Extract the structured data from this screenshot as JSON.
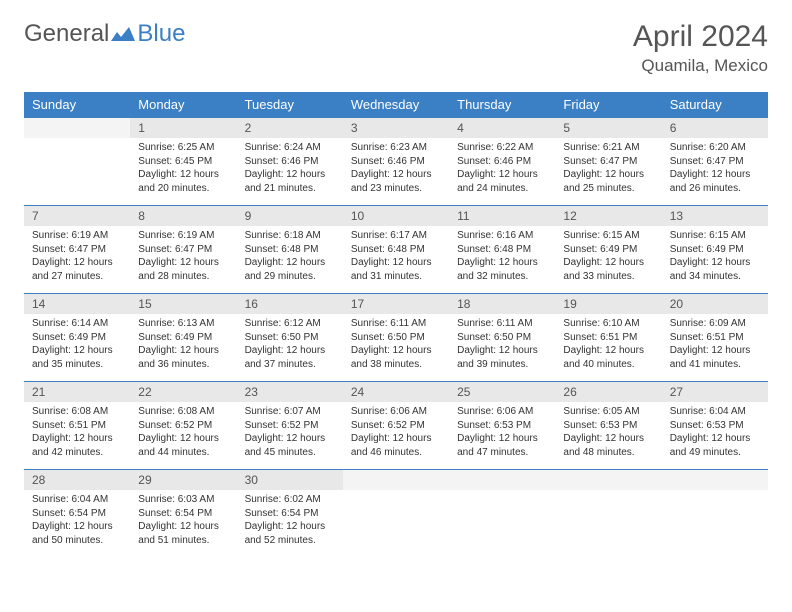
{
  "logo": {
    "text1": "General",
    "text2": "Blue"
  },
  "title": "April 2024",
  "location": "Quamila, Mexico",
  "colors": {
    "header_bg": "#3b7fc4",
    "header_text": "#ffffff",
    "daynum_bg": "#e8e8e8",
    "empty_bg": "#f4f4f4",
    "border": "#3b7fc4",
    "body_text": "#333333",
    "title_text": "#555555"
  },
  "weekdays": [
    "Sunday",
    "Monday",
    "Tuesday",
    "Wednesday",
    "Thursday",
    "Friday",
    "Saturday"
  ],
  "weeks": [
    [
      null,
      {
        "n": "1",
        "sunrise": "6:25 AM",
        "sunset": "6:45 PM",
        "daylight": "12 hours and 20 minutes."
      },
      {
        "n": "2",
        "sunrise": "6:24 AM",
        "sunset": "6:46 PM",
        "daylight": "12 hours and 21 minutes."
      },
      {
        "n": "3",
        "sunrise": "6:23 AM",
        "sunset": "6:46 PM",
        "daylight": "12 hours and 23 minutes."
      },
      {
        "n": "4",
        "sunrise": "6:22 AM",
        "sunset": "6:46 PM",
        "daylight": "12 hours and 24 minutes."
      },
      {
        "n": "5",
        "sunrise": "6:21 AM",
        "sunset": "6:47 PM",
        "daylight": "12 hours and 25 minutes."
      },
      {
        "n": "6",
        "sunrise": "6:20 AM",
        "sunset": "6:47 PM",
        "daylight": "12 hours and 26 minutes."
      }
    ],
    [
      {
        "n": "7",
        "sunrise": "6:19 AM",
        "sunset": "6:47 PM",
        "daylight": "12 hours and 27 minutes."
      },
      {
        "n": "8",
        "sunrise": "6:19 AM",
        "sunset": "6:47 PM",
        "daylight": "12 hours and 28 minutes."
      },
      {
        "n": "9",
        "sunrise": "6:18 AM",
        "sunset": "6:48 PM",
        "daylight": "12 hours and 29 minutes."
      },
      {
        "n": "10",
        "sunrise": "6:17 AM",
        "sunset": "6:48 PM",
        "daylight": "12 hours and 31 minutes."
      },
      {
        "n": "11",
        "sunrise": "6:16 AM",
        "sunset": "6:48 PM",
        "daylight": "12 hours and 32 minutes."
      },
      {
        "n": "12",
        "sunrise": "6:15 AM",
        "sunset": "6:49 PM",
        "daylight": "12 hours and 33 minutes."
      },
      {
        "n": "13",
        "sunrise": "6:15 AM",
        "sunset": "6:49 PM",
        "daylight": "12 hours and 34 minutes."
      }
    ],
    [
      {
        "n": "14",
        "sunrise": "6:14 AM",
        "sunset": "6:49 PM",
        "daylight": "12 hours and 35 minutes."
      },
      {
        "n": "15",
        "sunrise": "6:13 AM",
        "sunset": "6:49 PM",
        "daylight": "12 hours and 36 minutes."
      },
      {
        "n": "16",
        "sunrise": "6:12 AM",
        "sunset": "6:50 PM",
        "daylight": "12 hours and 37 minutes."
      },
      {
        "n": "17",
        "sunrise": "6:11 AM",
        "sunset": "6:50 PM",
        "daylight": "12 hours and 38 minutes."
      },
      {
        "n": "18",
        "sunrise": "6:11 AM",
        "sunset": "6:50 PM",
        "daylight": "12 hours and 39 minutes."
      },
      {
        "n": "19",
        "sunrise": "6:10 AM",
        "sunset": "6:51 PM",
        "daylight": "12 hours and 40 minutes."
      },
      {
        "n": "20",
        "sunrise": "6:09 AM",
        "sunset": "6:51 PM",
        "daylight": "12 hours and 41 minutes."
      }
    ],
    [
      {
        "n": "21",
        "sunrise": "6:08 AM",
        "sunset": "6:51 PM",
        "daylight": "12 hours and 42 minutes."
      },
      {
        "n": "22",
        "sunrise": "6:08 AM",
        "sunset": "6:52 PM",
        "daylight": "12 hours and 44 minutes."
      },
      {
        "n": "23",
        "sunrise": "6:07 AM",
        "sunset": "6:52 PM",
        "daylight": "12 hours and 45 minutes."
      },
      {
        "n": "24",
        "sunrise": "6:06 AM",
        "sunset": "6:52 PM",
        "daylight": "12 hours and 46 minutes."
      },
      {
        "n": "25",
        "sunrise": "6:06 AM",
        "sunset": "6:53 PM",
        "daylight": "12 hours and 47 minutes."
      },
      {
        "n": "26",
        "sunrise": "6:05 AM",
        "sunset": "6:53 PM",
        "daylight": "12 hours and 48 minutes."
      },
      {
        "n": "27",
        "sunrise": "6:04 AM",
        "sunset": "6:53 PM",
        "daylight": "12 hours and 49 minutes."
      }
    ],
    [
      {
        "n": "28",
        "sunrise": "6:04 AM",
        "sunset": "6:54 PM",
        "daylight": "12 hours and 50 minutes."
      },
      {
        "n": "29",
        "sunrise": "6:03 AM",
        "sunset": "6:54 PM",
        "daylight": "12 hours and 51 minutes."
      },
      {
        "n": "30",
        "sunrise": "6:02 AM",
        "sunset": "6:54 PM",
        "daylight": "12 hours and 52 minutes."
      },
      null,
      null,
      null,
      null
    ]
  ],
  "labels": {
    "sunrise": "Sunrise:",
    "sunset": "Sunset:",
    "daylight": "Daylight:"
  }
}
